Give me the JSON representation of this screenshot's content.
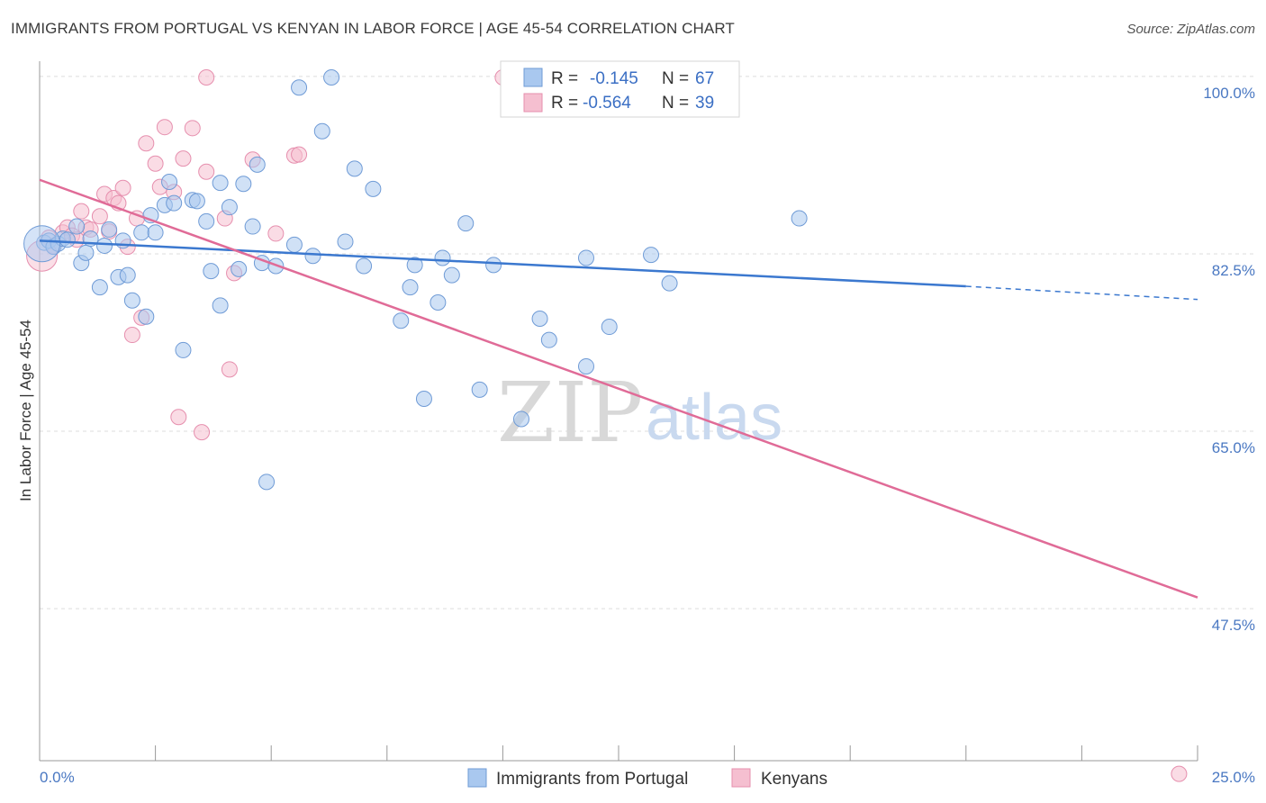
{
  "title": "IMMIGRANTS FROM PORTUGAL VS KENYAN IN LABOR FORCE | AGE 45-54 CORRELATION CHART",
  "source": "Source: ZipAtlas.com",
  "watermark": {
    "zip": "ZIP",
    "atlas": "atlas"
  },
  "colors": {
    "blue_fill": "#a9c8ef",
    "blue_stroke": "#6f9bd6",
    "blue_line": "#3b78cf",
    "pink_fill": "#f5bfd0",
    "pink_stroke": "#e68fae",
    "pink_line": "#e06b97",
    "grid": "#dcdcdc",
    "axis_label": "#4a78c2"
  },
  "legend": {
    "rows": [
      {
        "r_label": "R = ",
        "r_value": "-0.145",
        "n_label": "N = ",
        "n_value": "67"
      },
      {
        "r_label": "R = ",
        "r_value": "-0.564",
        "n_label": "N = ",
        "n_value": "39"
      }
    ]
  },
  "chart_data": {
    "type": "scatter",
    "title": "IMMIGRANTS FROM PORTUGAL VS KENYAN IN LABOR FORCE | AGE 45-54 CORRELATION CHART",
    "xlabel": "",
    "ylabel": "In Labor Force | Age 45-54",
    "xlim": [
      0,
      25
    ],
    "ylim": [
      32.5,
      101.5
    ],
    "x_tick_labels": [
      "0.0%",
      "25.0%"
    ],
    "y_ticks": [
      100,
      82.5,
      65,
      47.5
    ],
    "y_tick_labels": [
      "100.0%",
      "82.5%",
      "65.0%",
      "47.5%"
    ],
    "grid": true,
    "legend_position": "top-center",
    "series": [
      {
        "name": "Immigrants from Portugal",
        "color": "#a9c8ef",
        "r": -0.145,
        "n": 67,
        "trend": {
          "x0": 0,
          "y0": 83.8,
          "x1": 20,
          "y1": 79.3,
          "dash_to_x": 25,
          "dash_to_y": 78.0
        },
        "points": [
          [
            0.1,
            83.6
          ],
          [
            0.2,
            83.8
          ],
          [
            0.3,
            83.2
          ],
          [
            0.4,
            83.5
          ],
          [
            0.5,
            84.0
          ],
          [
            0.6,
            83.9
          ],
          [
            0.8,
            85.2
          ],
          [
            0.9,
            81.6
          ],
          [
            1.0,
            82.6
          ],
          [
            1.1,
            84.0
          ],
          [
            1.3,
            79.2
          ],
          [
            1.4,
            83.3
          ],
          [
            1.5,
            84.9
          ],
          [
            1.7,
            80.2
          ],
          [
            1.8,
            83.8
          ],
          [
            1.9,
            80.4
          ],
          [
            2.0,
            77.9
          ],
          [
            2.2,
            84.6
          ],
          [
            2.3,
            76.3
          ],
          [
            2.4,
            86.3
          ],
          [
            2.5,
            84.6
          ],
          [
            2.7,
            87.3
          ],
          [
            2.8,
            89.6
          ],
          [
            2.9,
            87.5
          ],
          [
            3.1,
            73.0
          ],
          [
            3.3,
            87.8
          ],
          [
            3.4,
            87.7
          ],
          [
            3.6,
            85.7
          ],
          [
            3.7,
            80.8
          ],
          [
            3.9,
            77.4
          ],
          [
            3.9,
            89.5
          ],
          [
            4.1,
            87.1
          ],
          [
            4.3,
            81.0
          ],
          [
            4.4,
            89.4
          ],
          [
            4.6,
            85.2
          ],
          [
            4.7,
            91.3
          ],
          [
            4.8,
            81.6
          ],
          [
            4.9,
            60.0
          ],
          [
            5.1,
            81.3
          ],
          [
            5.5,
            83.4
          ],
          [
            5.6,
            98.9
          ],
          [
            5.9,
            82.3
          ],
          [
            6.1,
            94.6
          ],
          [
            6.3,
            99.9
          ],
          [
            6.6,
            83.7
          ],
          [
            6.8,
            90.9
          ],
          [
            7.0,
            81.3
          ],
          [
            7.2,
            88.9
          ],
          [
            7.8,
            75.9
          ],
          [
            8.0,
            79.2
          ],
          [
            8.1,
            81.4
          ],
          [
            8.3,
            68.2
          ],
          [
            8.6,
            77.7
          ],
          [
            8.7,
            82.1
          ],
          [
            8.9,
            80.4
          ],
          [
            9.2,
            85.5
          ],
          [
            9.5,
            69.1
          ],
          [
            9.8,
            81.4
          ],
          [
            10.4,
            66.2
          ],
          [
            10.8,
            76.1
          ],
          [
            11.0,
            74.0
          ],
          [
            11.8,
            71.4
          ],
          [
            11.8,
            82.1
          ],
          [
            12.3,
            75.3
          ],
          [
            13.2,
            82.4
          ],
          [
            13.6,
            79.6
          ],
          [
            16.4,
            86.0
          ]
        ]
      },
      {
        "name": "Kenyans",
        "color": "#f5bfd0",
        "r": -0.564,
        "n": 39,
        "trend": {
          "x0": 0,
          "y0": 89.8,
          "x1": 25,
          "y1": 48.6
        },
        "points": [
          [
            0.2,
            84.1
          ],
          [
            0.3,
            83.3
          ],
          [
            0.5,
            84.6
          ],
          [
            0.6,
            85.1
          ],
          [
            0.7,
            84.3
          ],
          [
            0.8,
            83.9
          ],
          [
            0.9,
            86.7
          ],
          [
            1.0,
            85.1
          ],
          [
            1.1,
            84.9
          ],
          [
            1.3,
            86.2
          ],
          [
            1.4,
            88.4
          ],
          [
            1.5,
            84.7
          ],
          [
            1.6,
            88.0
          ],
          [
            1.7,
            87.5
          ],
          [
            1.8,
            89.0
          ],
          [
            1.9,
            83.2
          ],
          [
            2.0,
            74.5
          ],
          [
            2.1,
            86.0
          ],
          [
            2.2,
            76.2
          ],
          [
            2.3,
            93.4
          ],
          [
            2.5,
            91.4
          ],
          [
            2.6,
            89.1
          ],
          [
            2.7,
            95.0
          ],
          [
            2.9,
            88.6
          ],
          [
            3.0,
            66.4
          ],
          [
            3.1,
            91.9
          ],
          [
            3.3,
            94.9
          ],
          [
            3.5,
            64.9
          ],
          [
            3.6,
            90.6
          ],
          [
            3.6,
            99.9
          ],
          [
            4.0,
            86.0
          ],
          [
            4.1,
            71.1
          ],
          [
            4.2,
            80.6
          ],
          [
            4.6,
            91.8
          ],
          [
            5.1,
            84.5
          ],
          [
            5.5,
            92.2
          ],
          [
            5.6,
            92.3
          ],
          [
            10.0,
            99.9
          ],
          [
            24.6,
            31.2
          ]
        ]
      }
    ]
  },
  "bottom_legend": {
    "items": [
      "Immigrants from Portugal",
      "Kenyans"
    ]
  }
}
